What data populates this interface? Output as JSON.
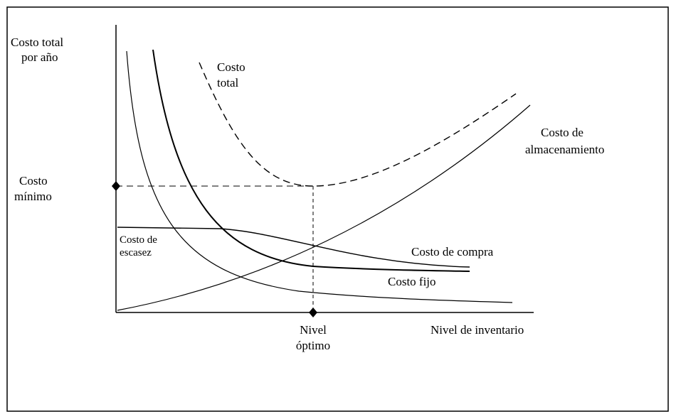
{
  "y_axis_label": [
    "Costo total",
    "por año"
  ],
  "x_axis_label": "Nivel de inventario",
  "min_cost_label": [
    "Costo",
    "mínimo"
  ],
  "optimal_level_label": [
    "Nivel",
    "óptimo"
  ],
  "curves": {
    "total": [
      "Costo",
      "total"
    ],
    "storage": [
      "Costo de",
      "almacenamiento"
    ],
    "shortage": [
      "Costo de",
      "escasez"
    ],
    "purchase": "Costo de compra",
    "fixed": "Costo fijo"
  }
}
